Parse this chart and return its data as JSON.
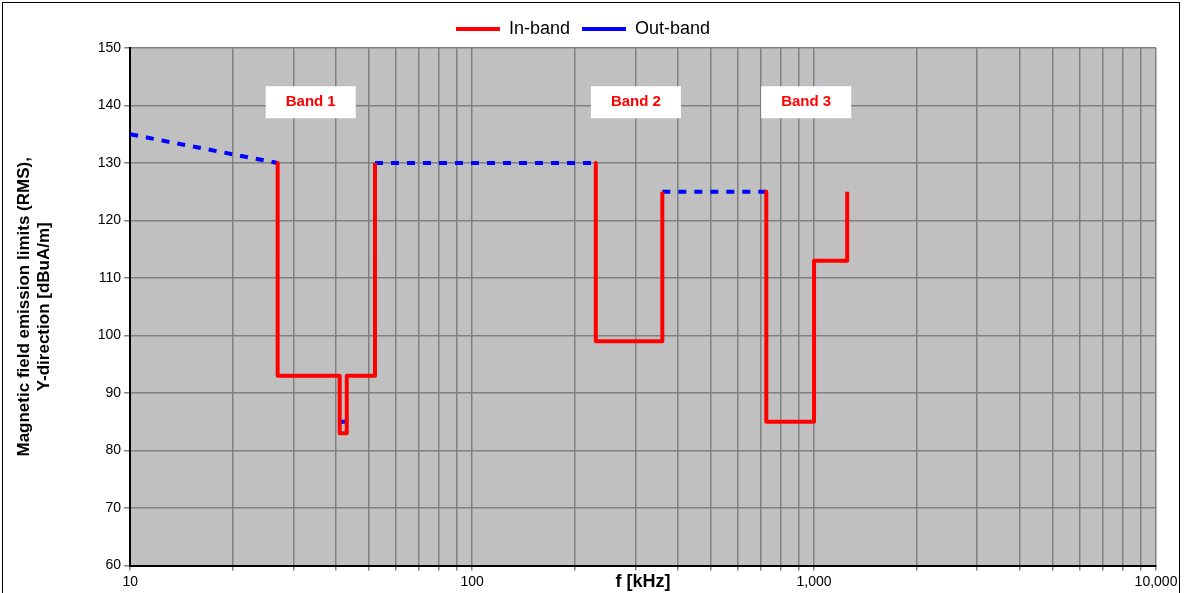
{
  "chart_data": {
    "type": "line",
    "xlabel": "f [kHz]",
    "ylabel": "Magnetic field emission limits (RMS), Y-direction [dBuA/m]",
    "log": "x",
    "xlim": [
      10,
      10000
    ],
    "xticks": [
      10,
      {
        "value": 20,
        "label": null
      },
      {
        "value": 30,
        "label": null
      },
      {
        "value": 40,
        "label": null
      },
      {
        "value": 50,
        "label": null
      },
      {
        "value": 60,
        "label": null
      },
      {
        "value": 70,
        "label": null
      },
      {
        "value": 80,
        "label": null
      },
      {
        "value": 90,
        "label": null
      },
      100,
      {
        "value": 200,
        "label": null
      },
      {
        "value": 300,
        "label": null
      },
      {
        "value": 400,
        "label": null
      },
      {
        "value": 500,
        "label": null
      },
      {
        "value": 600,
        "label": null
      },
      {
        "value": 700,
        "label": null
      },
      {
        "value": 800,
        "label": null
      },
      {
        "value": 900,
        "label": null
      },
      {
        "value": 1000,
        "label": "1,000"
      },
      {
        "value": 2000,
        "label": null
      },
      {
        "value": 3000,
        "label": null
      },
      {
        "value": 4000,
        "label": null
      },
      {
        "value": 5000,
        "label": null
      },
      {
        "value": 6000,
        "label": null
      },
      {
        "value": 7000,
        "label": null
      },
      {
        "value": 8000,
        "label": null
      },
      {
        "value": 9000,
        "label": null
      },
      {
        "value": 10000,
        "label": "10,000"
      }
    ],
    "ylim": [
      60,
      150
    ],
    "yticks": [
      60,
      70,
      80,
      90,
      100,
      110,
      120,
      130,
      140,
      150
    ],
    "grid": true,
    "legend": "top",
    "series": [
      {
        "name": "In-band",
        "color": "#ff0000",
        "line_style": "solid",
        "x": [
          27,
          27,
          41,
          41,
          43,
          43,
          52,
          52,
          null,
          230,
          230,
          360,
          360,
          null,
          725,
          725,
          1000,
          1000,
          1250,
          1250
        ],
        "values": [
          130,
          93,
          93,
          83,
          83,
          93,
          93,
          130,
          null,
          130,
          99,
          99,
          125,
          null,
          125,
          85,
          85,
          113,
          113,
          125
        ]
      },
      {
        "name": "Out-band",
        "color": "#0000ff",
        "line_style": "dashed",
        "x": [
          10,
          27,
          null,
          41,
          43,
          null,
          52,
          230,
          null,
          360,
          725
        ],
        "values": [
          135,
          130,
          null,
          85,
          85,
          null,
          130,
          130,
          null,
          125,
          125
        ]
      }
    ],
    "annotations": [
      "Band 1",
      "Band 2",
      "Band 3"
    ]
  }
}
